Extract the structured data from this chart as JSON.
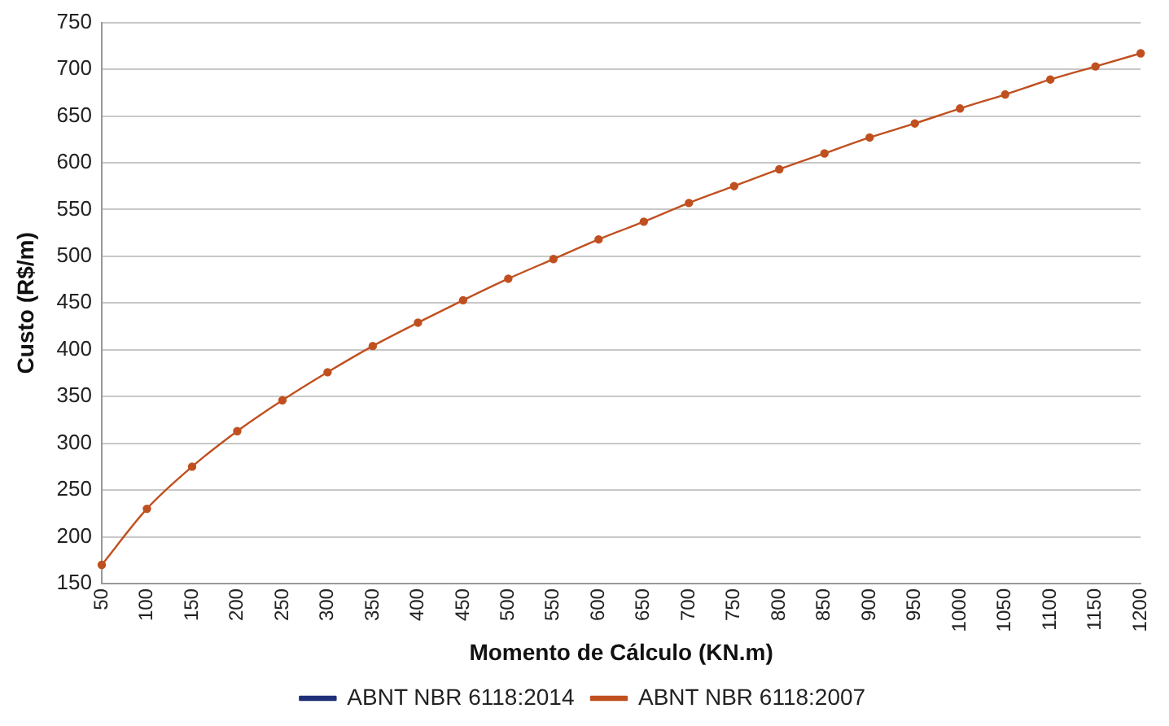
{
  "chart_data": {
    "type": "line",
    "xlabel": "Momento de Cálculo (KN.m)",
    "ylabel": "Custo (R$/m)",
    "categories": [
      "50",
      "100",
      "150",
      "200",
      "250",
      "300",
      "350",
      "400",
      "450",
      "500",
      "550",
      "600",
      "650",
      "700",
      "750",
      "800",
      "850",
      "900",
      "950",
      "1000",
      "1050",
      "1100",
      "1150",
      "1200"
    ],
    "series": [
      {
        "name": "ABNT NBR 6118:2014",
        "color": "#1f2f7a",
        "values": [
          null,
          null,
          null,
          null,
          null,
          null,
          null,
          null,
          null,
          null,
          null,
          null,
          null,
          null,
          null,
          null,
          null,
          null,
          null,
          null,
          null,
          null,
          null,
          null
        ]
      },
      {
        "name": "ABNT NBR 6118:2007",
        "color": "#c0501f",
        "values": [
          170,
          230,
          275,
          313,
          346,
          376,
          404,
          429,
          453,
          476,
          497,
          518,
          537,
          557,
          575,
          593,
          610,
          627,
          642,
          658,
          673,
          689,
          703,
          717
        ]
      }
    ],
    "ylim": [
      150,
      750
    ],
    "yticks": [
      150,
      200,
      250,
      300,
      350,
      400,
      450,
      500,
      550,
      600,
      650,
      700,
      750
    ],
    "grid": "y",
    "legend": "bottom",
    "marker": "circle",
    "line_style": "solid"
  }
}
